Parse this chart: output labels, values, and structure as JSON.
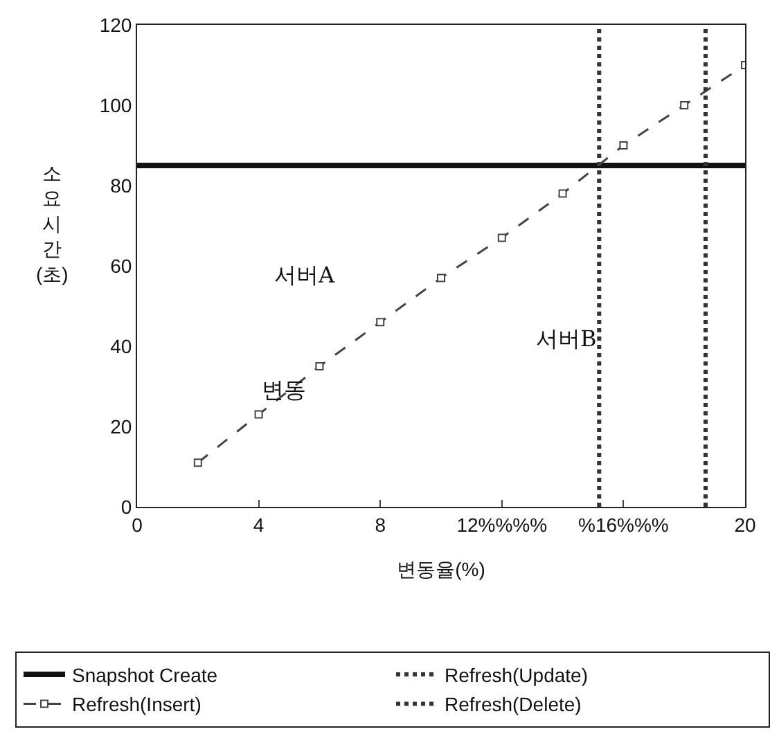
{
  "chart_data": {
    "type": "line",
    "xlabel": "변동율(%)",
    "ylabel": "소요시간(초)",
    "xlim": [
      0,
      20
    ],
    "ylim": [
      0,
      120
    ],
    "xticks": [
      0,
      4,
      8,
      {
        "value": 12,
        "label": "12%%%%"
      },
      {
        "value": 16,
        "label": "%16%%%"
      },
      20
    ],
    "yticks": [
      0,
      20,
      40,
      60,
      80,
      100,
      120
    ],
    "legend": "bottom",
    "series": [
      {
        "name": "Snapshot Create",
        "color": "#111111",
        "x": [
          0,
          20
        ],
        "values": [
          85,
          85
        ],
        "line_style": "solid",
        "marker": "none"
      },
      {
        "name": "Refresh(Update)",
        "color": "#333333",
        "x": [
          15.2,
          15.2
        ],
        "values": [
          0,
          120
        ],
        "line_style": "dotted",
        "marker": "none"
      },
      {
        "name": "Refresh(Insert)",
        "color": "#444444",
        "x": [
          2,
          4,
          6,
          8,
          10,
          12,
          14,
          16,
          18,
          20
        ],
        "values": [
          11,
          23,
          35,
          46,
          57,
          67,
          78,
          90,
          100,
          110
        ],
        "line_style": "dashed",
        "marker": "square"
      },
      {
        "name": "Refresh(Delete)",
        "color": "#333333",
        "x": [
          18.7,
          18.7
        ],
        "values": [
          0,
          120
        ],
        "line_style": "dotted",
        "marker": "none"
      }
    ],
    "annotations": [
      "서버A",
      "서버B",
      "변동"
    ]
  }
}
